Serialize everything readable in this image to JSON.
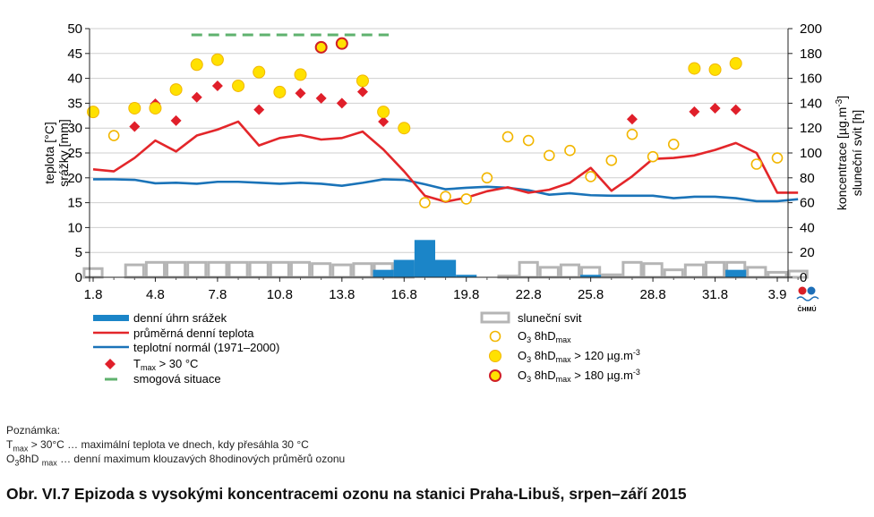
{
  "chart_data": {
    "type": "combo",
    "title": "",
    "x_ticks": [
      "1.8",
      "4.8",
      "7.8",
      "10.8",
      "13.8",
      "16.8",
      "19.8",
      "22.8",
      "25.8",
      "28.8",
      "31.8",
      "3.9"
    ],
    "days": [
      "1.8",
      "2.8",
      "3.8",
      "4.8",
      "5.8",
      "6.8",
      "7.8",
      "8.8",
      "9.8",
      "10.8",
      "11.8",
      "12.8",
      "13.8",
      "14.8",
      "15.8",
      "16.8",
      "17.8",
      "18.8",
      "19.8",
      "20.8",
      "21.8",
      "22.8",
      "23.8",
      "24.8",
      "25.8",
      "26.8",
      "27.8",
      "28.8",
      "29.8",
      "30.8",
      "31.8",
      "1.9",
      "2.9",
      "3.9",
      "4.9"
    ],
    "y_left": {
      "label_line1": "teplota [°C]",
      "label_line2": "srážky [mm]",
      "min": 0,
      "max": 50,
      "ticks": [
        "0",
        "5",
        "10",
        "15",
        "20",
        "25",
        "30",
        "35",
        "40",
        "45",
        "50"
      ]
    },
    "y_right": {
      "label_line1": "koncentrace [µg.m",
      "label_sup": "-3",
      "label_line1_end": "]",
      "label_line2": "sluneční svit [h]",
      "min": 0,
      "max": 200,
      "ticks": [
        "0",
        "20",
        "40",
        "60",
        "80",
        "100",
        "120",
        "140",
        "160",
        "180",
        "200"
      ]
    },
    "series": {
      "precipitation_mm": [
        0,
        0,
        0,
        0,
        0,
        0,
        0,
        0,
        0,
        0,
        0,
        0,
        0,
        0,
        1.5,
        3.5,
        7.5,
        3.5,
        0.5,
        0,
        0,
        0,
        0,
        0,
        0.5,
        0,
        0,
        0,
        0,
        0,
        0,
        1.5,
        0,
        0,
        0
      ],
      "sunshine_h": [
        7,
        0,
        10,
        12,
        12,
        12,
        12,
        12,
        12,
        12,
        12,
        11,
        10,
        11,
        11,
        11,
        0,
        0,
        0,
        0,
        1,
        12,
        8,
        10,
        8,
        2,
        12,
        11,
        6,
        10,
        12,
        12,
        8,
        4,
        5
      ],
      "mean_temp_c": [
        21.7,
        21.3,
        24.0,
        27.5,
        25.3,
        28.5,
        29.7,
        31.3,
        26.5,
        28.0,
        28.6,
        27.7,
        28.0,
        29.3,
        25.7,
        21.3,
        16.4,
        15.2,
        16.0,
        17.3,
        18.1,
        17.0,
        17.6,
        19.0,
        22.0,
        17.4,
        20.3,
        23.8,
        24.0,
        24.5,
        25.6,
        27.0,
        25.0,
        17.0,
        17.0
      ],
      "normal_temp_c": [
        19.7,
        19.7,
        19.6,
        18.9,
        19.0,
        18.8,
        19.2,
        19.2,
        19.0,
        18.8,
        19.0,
        18.8,
        18.4,
        19.0,
        19.7,
        19.6,
        18.7,
        17.7,
        18.0,
        18.2,
        18.0,
        17.5,
        16.6,
        16.9,
        16.5,
        16.4,
        16.4,
        16.4,
        15.9,
        16.2,
        16.2,
        15.9,
        15.3,
        15.3,
        15.7
      ],
      "tmax_over_30_c": [
        null,
        null,
        30.3,
        34.9,
        31.5,
        36.2,
        38.5,
        38.5,
        33.7,
        37.0,
        37.0,
        36.0,
        35.0,
        37.3,
        31.3,
        null,
        null,
        null,
        null,
        null,
        null,
        null,
        null,
        null,
        null,
        null,
        31.8,
        null,
        null,
        33.3,
        34.0,
        33.7,
        null,
        null,
        null
      ],
      "o3_8hd_ugm3": [
        133,
        114,
        136,
        136,
        151,
        171,
        175,
        154,
        165,
        149,
        163,
        185,
        188,
        158,
        133,
        120,
        60,
        65,
        63,
        80,
        113,
        110,
        98,
        102,
        81,
        94,
        115,
        97,
        107,
        168,
        167,
        172,
        91,
        96,
        null
      ],
      "o3_category": [
        "hi",
        "lo",
        "hi",
        "hi",
        "hi",
        "hi",
        "hi",
        "hi",
        "hi",
        "hi",
        "hi",
        "vhi",
        "vhi",
        "hi",
        "hi",
        "hi",
        "lo",
        "lo",
        "lo",
        "lo",
        "lo",
        "lo",
        "lo",
        "lo",
        "lo",
        "lo",
        "lo",
        "lo",
        "lo",
        "hi",
        "hi",
        "hi",
        "lo",
        "lo",
        null
      ],
      "smog_situation": {
        "from": "6.8",
        "to": "15.8",
        "level_ugm3": 195
      }
    },
    "legend": [
      {
        "key": "precip",
        "label": "denní úhrn srážek"
      },
      {
        "key": "temp",
        "label": "průměrná denní teplota"
      },
      {
        "key": "normal",
        "label": "teplotní normál (1971–2000)"
      },
      {
        "key": "tmax",
        "label_pre": "T",
        "label_sub": "max",
        "label_post": " > 30 °C"
      },
      {
        "key": "smog",
        "label": "smogová situace"
      },
      {
        "key": "sun",
        "label": "sluneční svit"
      },
      {
        "key": "o3lo",
        "label_pre": "O",
        "label_sub1": "3",
        "label_mid": " 8hD",
        "label_sub2": "max",
        "label_post": ""
      },
      {
        "key": "o3hi",
        "label_pre": "O",
        "label_sub1": "3",
        "label_mid": " 8hD",
        "label_sub2": "max",
        "label_post": " > 120 µg.m",
        "label_sup": "-3"
      },
      {
        "key": "o3vhi",
        "label_pre": "O",
        "label_sub1": "3",
        "label_mid": " 8hD",
        "label_sub2": "max",
        "label_post": "  > 180 µg.m",
        "label_sup": "-3"
      }
    ],
    "colors": {
      "precip": "#1b85c8",
      "temp": "#e3262a",
      "normal": "#1a73b8",
      "tmax": "#e01f2a",
      "smog": "#5fb26e",
      "sun": "#b5b5b5",
      "o3_fill": "#ffe100",
      "o3_stroke": "#f2b600",
      "o3_vhi_stroke": "#d01f25"
    },
    "logo_text": "ČHMÚ"
  },
  "notes": {
    "title": "Poznámka:",
    "line1_pre": "T",
    "line1_sub": "max",
    "line1_post": " > 30°C … maximální teplota ve dnech, kdy přesáhla 30 °C",
    "line2_pre": "O",
    "line2_sub": "3",
    "line2_mid": "8hD ",
    "line2_sub2": "max",
    "line2_post": " … denní maximum klouzavých 8hodinových průměrů ozonu"
  },
  "caption": "Obr. VI.7  Epizoda s vysokými koncentracemi ozonu na stanici Praha-Libuš, srpen–září 2015"
}
